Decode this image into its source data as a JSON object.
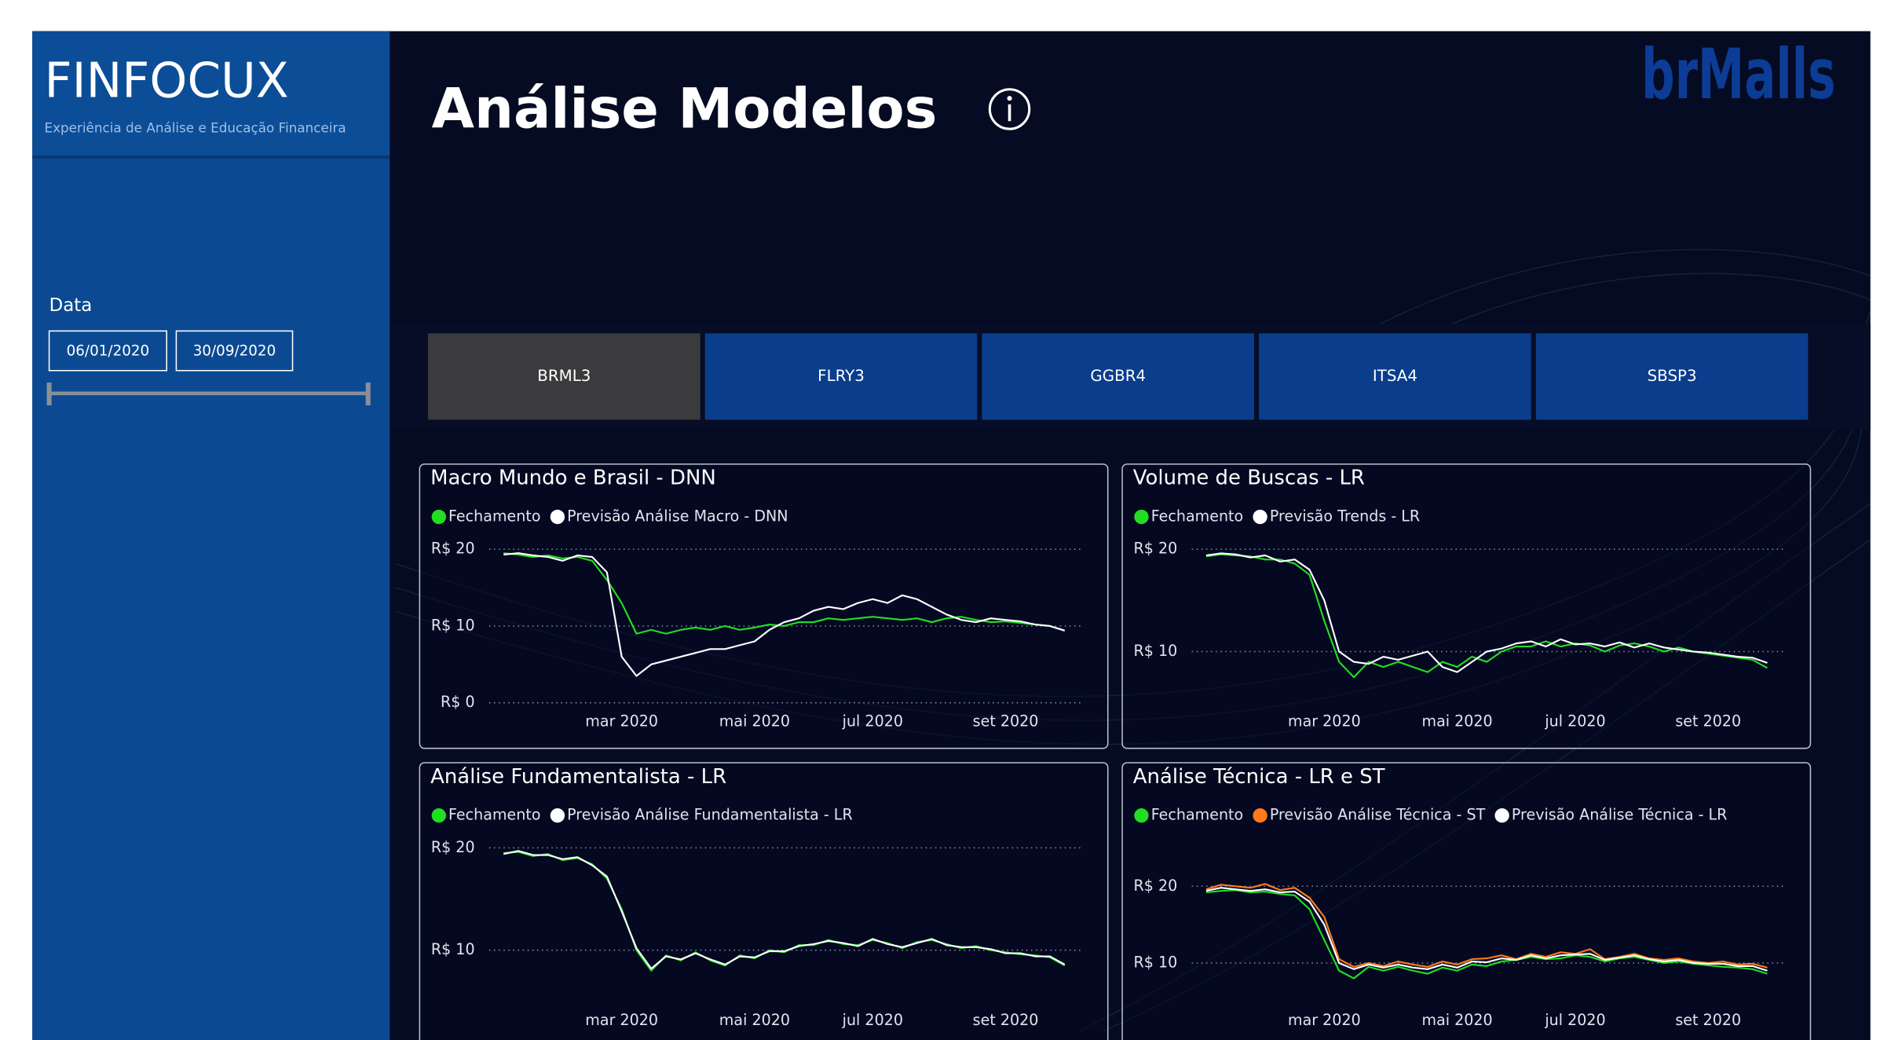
{
  "sidebar": {
    "brand": "FINFOCUX",
    "tagline": "Experiência de Análise e Educação Financeira",
    "date_filter": {
      "label": "Data",
      "start": "06/01/2020",
      "end": "30/09/2020"
    }
  },
  "header": {
    "title": "Análise Modelos",
    "logo": "brMalls"
  },
  "tabs": {
    "items": [
      "BRML3",
      "FLRY3",
      "GGBR4",
      "ITSA4",
      "SBSP3"
    ],
    "active": 0
  },
  "chart_data": [
    {
      "type": "line",
      "title": "Macro Mundo e Brasil - DNN",
      "categories": [
        null,
        null,
        null,
        null,
        null,
        null,
        null,
        null,
        "mar 2020",
        null,
        null,
        null,
        null,
        null,
        null,
        null,
        null,
        "mai 2020",
        null,
        null,
        null,
        null,
        null,
        null,
        null,
        "jul 2020",
        null,
        null,
        null,
        null,
        null,
        null,
        null,
        null,
        "set 2020",
        null,
        null,
        null,
        null
      ],
      "series": [
        {
          "name": "Fechamento",
          "color": "#22dd22",
          "values": [
            19.5,
            19.3,
            19.0,
            19.2,
            18.8,
            19.0,
            18.5,
            16,
            13,
            9,
            9.5,
            9,
            9.5,
            9.8,
            9.5,
            10,
            9.5,
            9.8,
            10.2,
            10,
            10.5,
            10.5,
            11,
            10.8,
            11,
            11.2,
            11,
            10.8,
            11,
            10.5,
            11,
            11.2,
            10.8,
            10.5,
            10.6,
            10.4,
            10.2,
            10,
            9.4
          ]
        },
        {
          "name": "Previsão Análise Macro - DNN",
          "color": "#ffffff",
          "values": [
            19.3,
            19.5,
            19.2,
            19,
            18.5,
            19.2,
            19,
            17,
            6,
            3.5,
            5,
            5.5,
            6,
            6.5,
            7,
            7,
            7.5,
            8,
            9.5,
            10.5,
            11,
            12,
            12.5,
            12.2,
            13,
            13.5,
            13,
            14,
            13.5,
            12.5,
            11.5,
            10.8,
            10.5,
            11,
            10.8,
            10.6,
            10.2,
            10,
            9.4
          ]
        }
      ],
      "ylim": [
        0,
        20
      ],
      "yticks": [
        {
          "value": 0,
          "label": "R$ 0"
        },
        {
          "value": 10,
          "label": "R$ 10"
        },
        {
          "value": 20,
          "label": "R$ 20"
        }
      ],
      "grid": true
    },
    {
      "type": "line",
      "title": "Volume de Buscas - LR",
      "categories": [
        null,
        null,
        null,
        null,
        null,
        null,
        null,
        null,
        "mar 2020",
        null,
        null,
        null,
        null,
        null,
        null,
        null,
        null,
        "mai 2020",
        null,
        null,
        null,
        null,
        null,
        null,
        null,
        "jul 2020",
        null,
        null,
        null,
        null,
        null,
        null,
        null,
        null,
        "set 2020",
        null,
        null,
        null,
        null
      ],
      "series": [
        {
          "name": "Fechamento",
          "color": "#22dd22",
          "values": [
            19.3,
            19.5,
            19.4,
            19.3,
            19,
            19,
            18.6,
            17.5,
            13,
            9,
            7.5,
            9,
            8.5,
            9,
            8.5,
            8,
            9,
            8.5,
            9.5,
            9,
            10,
            10.5,
            10.5,
            11,
            10.5,
            10.8,
            10.6,
            10,
            10.6,
            10.8,
            10.5,
            10,
            10.4,
            10,
            9.8,
            9.6,
            9.4,
            9.2,
            8.4
          ]
        },
        {
          "name": "Previsão Trends - LR",
          "color": "#ffffff",
          "values": [
            19.4,
            19.6,
            19.5,
            19.2,
            19.4,
            18.8,
            19,
            18,
            15,
            10,
            9,
            8.8,
            9.5,
            9.2,
            9.6,
            10,
            8.5,
            8,
            9,
            10,
            10.3,
            10.8,
            11,
            10.5,
            11.2,
            10.7,
            10.8,
            10.5,
            10.9,
            10.4,
            10.8,
            10.4,
            10.2,
            10,
            9.9,
            9.7,
            9.5,
            9.4,
            8.9
          ]
        }
      ],
      "ylim": [
        5,
        20
      ],
      "yticks": [
        {
          "value": 10,
          "label": "R$ 10"
        },
        {
          "value": 20,
          "label": "R$ 20"
        }
      ],
      "grid": true
    },
    {
      "type": "line",
      "title": "Análise Fundamentalista - LR",
      "categories": [
        null,
        null,
        null,
        null,
        null,
        null,
        null,
        null,
        "mar 2020",
        null,
        null,
        null,
        null,
        null,
        null,
        null,
        null,
        "mai 2020",
        null,
        null,
        null,
        null,
        null,
        null,
        null,
        "jul 2020",
        null,
        null,
        null,
        null,
        null,
        null,
        null,
        null,
        "set 2020",
        null,
        null,
        null,
        null
      ],
      "series": [
        {
          "name": "Fechamento",
          "color": "#22dd22",
          "values": [
            19.5,
            19.6,
            19.2,
            19.4,
            18.8,
            19,
            18.4,
            17,
            14,
            10,
            8,
            9.5,
            9,
            9.8,
            9,
            8.5,
            9.5,
            9.2,
            10,
            9.8,
            10.5,
            10.5,
            11,
            10.6,
            10.5,
            11,
            10.7,
            10.2,
            10.8,
            11,
            10.6,
            10.2,
            10.4,
            10,
            9.8,
            9.6,
            9.5,
            9.3,
            8.5
          ]
        },
        {
          "name": "Previsão Análise Fundamentalista - LR",
          "color": "#ffffff",
          "values": [
            19.4,
            19.7,
            19.3,
            19.3,
            18.9,
            19.1,
            18.3,
            17.2,
            13.8,
            10.2,
            8.2,
            9.4,
            9.1,
            9.7,
            9.1,
            8.6,
            9.4,
            9.3,
            9.9,
            9.9,
            10.4,
            10.6,
            10.9,
            10.7,
            10.4,
            11.1,
            10.6,
            10.3,
            10.7,
            11.1,
            10.5,
            10.3,
            10.3,
            10.1,
            9.7,
            9.7,
            9.4,
            9.4,
            8.6
          ]
        }
      ],
      "ylim": [
        5,
        20
      ],
      "yticks": [
        {
          "value": 10,
          "label": "R$ 10"
        },
        {
          "value": 20,
          "label": "R$ 20"
        }
      ],
      "grid": true
    },
    {
      "type": "line",
      "title": "Análise Técnica - LR e ST",
      "categories": [
        null,
        null,
        null,
        null,
        null,
        null,
        null,
        null,
        "mar 2020",
        null,
        null,
        null,
        null,
        null,
        null,
        null,
        null,
        "mai 2020",
        null,
        null,
        null,
        null,
        null,
        null,
        null,
        "jul 2020",
        null,
        null,
        null,
        null,
        null,
        null,
        null,
        null,
        "set 2020",
        null,
        null,
        null,
        null
      ],
      "series": [
        {
          "name": "Fechamento",
          "color": "#22dd22",
          "values": [
            19.2,
            19.4,
            19.5,
            19.2,
            19.3,
            19,
            18.8,
            17,
            13,
            9,
            8,
            9.5,
            9,
            9.5,
            9,
            8.6,
            9.4,
            9,
            9.8,
            9.6,
            10.2,
            10.4,
            10.8,
            10.5,
            10.6,
            11,
            10.8,
            10.2,
            10.6,
            10.8,
            10.4,
            10,
            10.2,
            9.9,
            9.7,
            9.5,
            9.4,
            9.2,
            8.6
          ]
        },
        {
          "name": "Previsão Análise Técnica - ST",
          "color": "#ff7a1a",
          "values": [
            19.6,
            20.2,
            20,
            19.8,
            20.3,
            19.5,
            19.8,
            18.5,
            16,
            10.5,
            9.5,
            10,
            9.6,
            10.2,
            9.8,
            9.5,
            10.2,
            9.8,
            10.5,
            10.6,
            11,
            10.5,
            11.2,
            10.8,
            11.4,
            11.2,
            11.8,
            10.5,
            10.8,
            11.2,
            10.6,
            10.4,
            10.6,
            10.2,
            10,
            10.2,
            9.8,
            9.9,
            9.4
          ]
        },
        {
          "name": "Previsão Análise Técnica - LR",
          "color": "#ffffff",
          "values": [
            19.4,
            19.8,
            19.6,
            19.4,
            19.6,
            19.2,
            19.3,
            18,
            15,
            10,
            9.2,
            9.8,
            9.4,
            9.8,
            9.4,
            9.2,
            9.8,
            9.4,
            10.2,
            10.1,
            10.6,
            10.4,
            11,
            10.6,
            11,
            11.1,
            11.2,
            10.4,
            10.7,
            11,
            10.5,
            10.2,
            10.4,
            10,
            9.9,
            9.9,
            9.6,
            9.6,
            9
          ]
        }
      ],
      "ylim": [
        5,
        25
      ],
      "yticks": [
        {
          "value": 10,
          "label": "R$ 10"
        },
        {
          "value": 20,
          "label": "R$ 20"
        }
      ],
      "grid": true
    }
  ]
}
